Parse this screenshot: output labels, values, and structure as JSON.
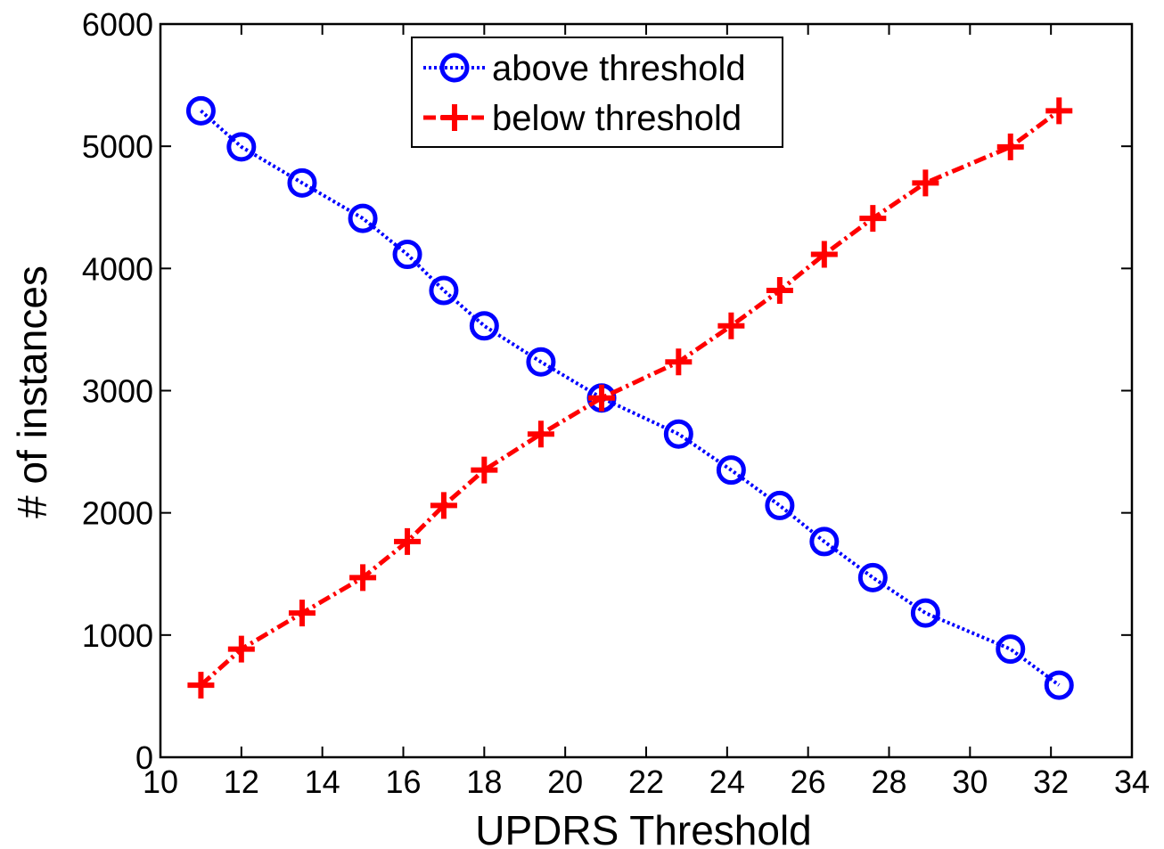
{
  "chart_data": {
    "type": "line",
    "title": "",
    "xlabel": "UPDRS Threshold",
    "ylabel": "# of instances",
    "xlim": [
      10,
      34
    ],
    "ylim": [
      0,
      6000
    ],
    "xticks": [
      "10",
      "12",
      "14",
      "16",
      "18",
      "20",
      "22",
      "24",
      "26",
      "28",
      "30",
      "32",
      "34"
    ],
    "yticks": [
      "0",
      "1000",
      "2000",
      "3000",
      "4000",
      "5000",
      "6000"
    ],
    "grid": false,
    "legend_position": "top-center",
    "series": [
      {
        "name": "above threshold",
        "color": "#0000ff",
        "marker": "circle",
        "line_style": "dotted",
        "x": [
          11.0,
          12.0,
          13.5,
          15.0,
          16.1,
          17.0,
          18.0,
          19.4,
          20.9,
          22.8,
          24.1,
          25.3,
          26.4,
          27.6,
          28.9,
          31.0,
          32.2
        ],
        "y": [
          5290,
          4995,
          4700,
          4410,
          4115,
          3820,
          3530,
          3235,
          2940,
          2645,
          2350,
          2060,
          1765,
          1470,
          1180,
          885,
          590
        ]
      },
      {
        "name": "below threshold",
        "color": "#ff0000",
        "marker": "plus",
        "line_style": "dashdot",
        "x": [
          11.0,
          12.0,
          13.5,
          15.0,
          16.1,
          17.0,
          18.0,
          19.4,
          20.9,
          22.8,
          24.1,
          25.3,
          26.4,
          27.6,
          28.9,
          31.0,
          32.2
        ],
        "y": [
          590,
          885,
          1180,
          1470,
          1765,
          2060,
          2350,
          2645,
          2940,
          3235,
          3530,
          3820,
          4115,
          4410,
          4700,
          4995,
          5290
        ]
      }
    ]
  }
}
